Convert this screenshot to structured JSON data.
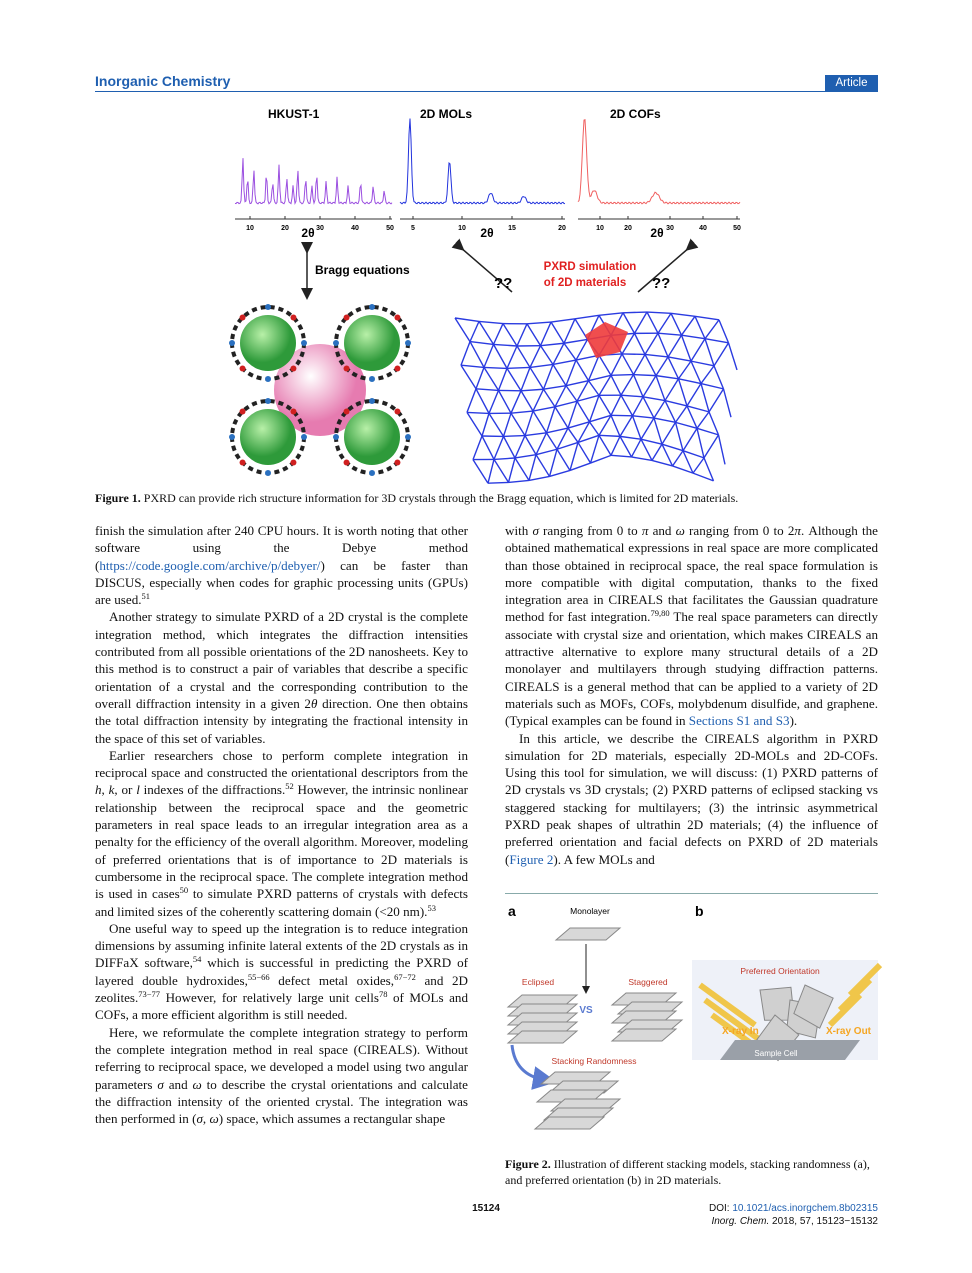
{
  "header": {
    "journal": "Inorganic Chemistry",
    "badge": "Article"
  },
  "figure1": {
    "panels": [
      {
        "title": "HKUST-1",
        "ticks": [
          "10",
          "20",
          "30",
          "40",
          "50"
        ],
        "axis_label": "2θ"
      },
      {
        "title": "2D MOLs",
        "ticks": [
          "5",
          "10",
          "15",
          "20"
        ],
        "axis_label": "2θ"
      },
      {
        "title": "2D COFs",
        "ticks": [
          "10",
          "20",
          "30",
          "40",
          "50"
        ],
        "axis_label": "2θ"
      }
    ],
    "bragg_label": "Bragg equations",
    "unknown_left": "??",
    "simulation_label": [
      "PXRD simulation",
      "of 2D materials"
    ],
    "unknown_right": "??",
    "caption": [
      {
        "b": "Figure 1."
      },
      " PXRD can provide rich structure information for 3D crystals through the Bragg equation, which is limited for 2D materials."
    ]
  },
  "body": {
    "left": [
      [
        "finish the simulation after 240 CPU hours. It is worth noting that other software using the Debye method (",
        {
          "link": "https://code.google.com/archive/p/debyer/"
        },
        ") can be faster than DISCUS, especially when codes for graphic processing units (GPUs) are used.",
        {
          "sup": "51"
        }
      ],
      [
        "Another strategy to simulate PXRD of a 2D crystal is the complete integration method, which integrates the diffraction intensities contributed from all possible orientations of the 2D nanosheets. Key to this method is to construct a pair of variables that describe a specific orientation of a crystal and the corresponding contribution to the overall diffraction intensity in a given 2",
        {
          "i": "θ"
        },
        " direction. One then obtains the total diffraction intensity by integrating the fractional intensity in the space of this set of variables."
      ],
      [
        "Earlier researchers chose to perform complete integration in reciprocal space and constructed the orientational descriptors from the ",
        {
          "i": "h"
        },
        ", ",
        {
          "i": "k"
        },
        ", or ",
        {
          "i": "l"
        },
        " indexes of the diffractions.",
        {
          "sup": "52"
        },
        " However, the intrinsic nonlinear relationship between the reciprocal space and the geometric parameters in real space leads to an irregular integration area as a penalty for the efficiency of the overall algorithm. Moreover, modeling of preferred orientations that is of importance to 2D materials is cumbersome in the reciprocal space. The complete integration method is used in cases",
        {
          "sup": "50"
        },
        " to simulate PXRD patterns of crystals with defects and limited sizes of the coherently scattering domain (<20 nm).",
        {
          "sup": "53"
        }
      ],
      [
        "One useful way to speed up the integration is to reduce integration dimensions by assuming infinite lateral extents of the 2D crystals as in DIFFaX software,",
        {
          "sup": "54"
        },
        " which is successful in predicting the PXRD of layered double hydroxides,",
        {
          "sup": "55−66"
        },
        " defect metal oxides,",
        {
          "sup": "67−72"
        },
        " and 2D zeolites.",
        {
          "sup": "73−77"
        },
        " However, for relatively large unit cells",
        {
          "sup": "78"
        },
        " of MOLs and COFs, a more efficient algorithm is still needed."
      ],
      [
        "Here, we reformulate the complete integration strategy to perform the complete integration method in real space (CIREALS). Without referring to reciprocal space, we developed a model using two angular parameters ",
        {
          "i": "σ"
        },
        " and ",
        {
          "i": "ω"
        },
        " to describe the crystal orientations and calculate the diffraction intensity of the oriented crystal. The integration was then performed in (",
        {
          "i": "σ"
        },
        ", ",
        {
          "i": "ω"
        },
        ") space, which assumes a rectangular shape"
      ]
    ],
    "right": [
      [
        "with ",
        {
          "i": "σ"
        },
        " ranging from 0 to ",
        {
          "i": "π"
        },
        " and ",
        {
          "i": "ω"
        },
        " ranging from 0 to 2",
        {
          "i": "π"
        },
        ". Although the obtained mathematical expressions in real space are more complicated than those obtained in reciprocal space, the real space formulation is more compatible with digital computation, thanks to the fixed integration area in CIREALS that facilitates the Gaussian quadrature method for fast integration.",
        {
          "sup": "79,80"
        },
        " The real space parameters can directly associate with crystal size and orientation, which makes CIREALS an attractive alternative to explore many structural details of a 2D monolayer and multilayers through studying diffraction patterns. CIREALS is a general method that can be applied to a variety of 2D materials such as MOFs, COFs, molybdenum disulfide, and graphene. (Typical examples can be found in ",
        {
          "link": "Sections S1 and S3"
        },
        ")."
      ],
      [
        "In this article, we describe the CIREALS algorithm in PXRD simulation for 2D materials, especially 2D-MOLs and 2D-COFs. Using this tool for simulation, we will discuss: (1) PXRD patterns of 2D crystals vs 3D crystals; (2) PXRD patterns of eclipsed stacking vs staggered stacking for multilayers; (3) the intrinsic asymmetrical PXRD peak shapes of ultrathin 2D materials; (4) the influence of preferred orientation and facial defects on PXRD of 2D materials (",
        {
          "link": "Figure 2"
        },
        "). A few MOLs and"
      ]
    ]
  },
  "figure2": {
    "a": {
      "letter": "a",
      "monolayer": "Monolayer",
      "eclipsed": "Eclipsed",
      "vs": "VS",
      "staggered": "Staggered",
      "randomness": "Stacking Randomness"
    },
    "b": {
      "letter": "b",
      "orientation": "Preferred Orientation",
      "xray_in": "X-ray In",
      "xray_out": "X-ray Out",
      "cell": "Sample Cell"
    },
    "caption": [
      {
        "b": "Figure 2."
      },
      " Illustration of different stacking models, stacking randomness (a), and preferred orientation (b) in 2D materials."
    ]
  },
  "footer": {
    "page": "15124",
    "doi": [
      "DOI: ",
      {
        "link": "10.1021/acs.inorgchem.8b02315"
      }
    ],
    "citation": [
      {
        "i": "Inorg. Chem."
      },
      " 2018, 57, 15123−15132"
    ]
  }
}
